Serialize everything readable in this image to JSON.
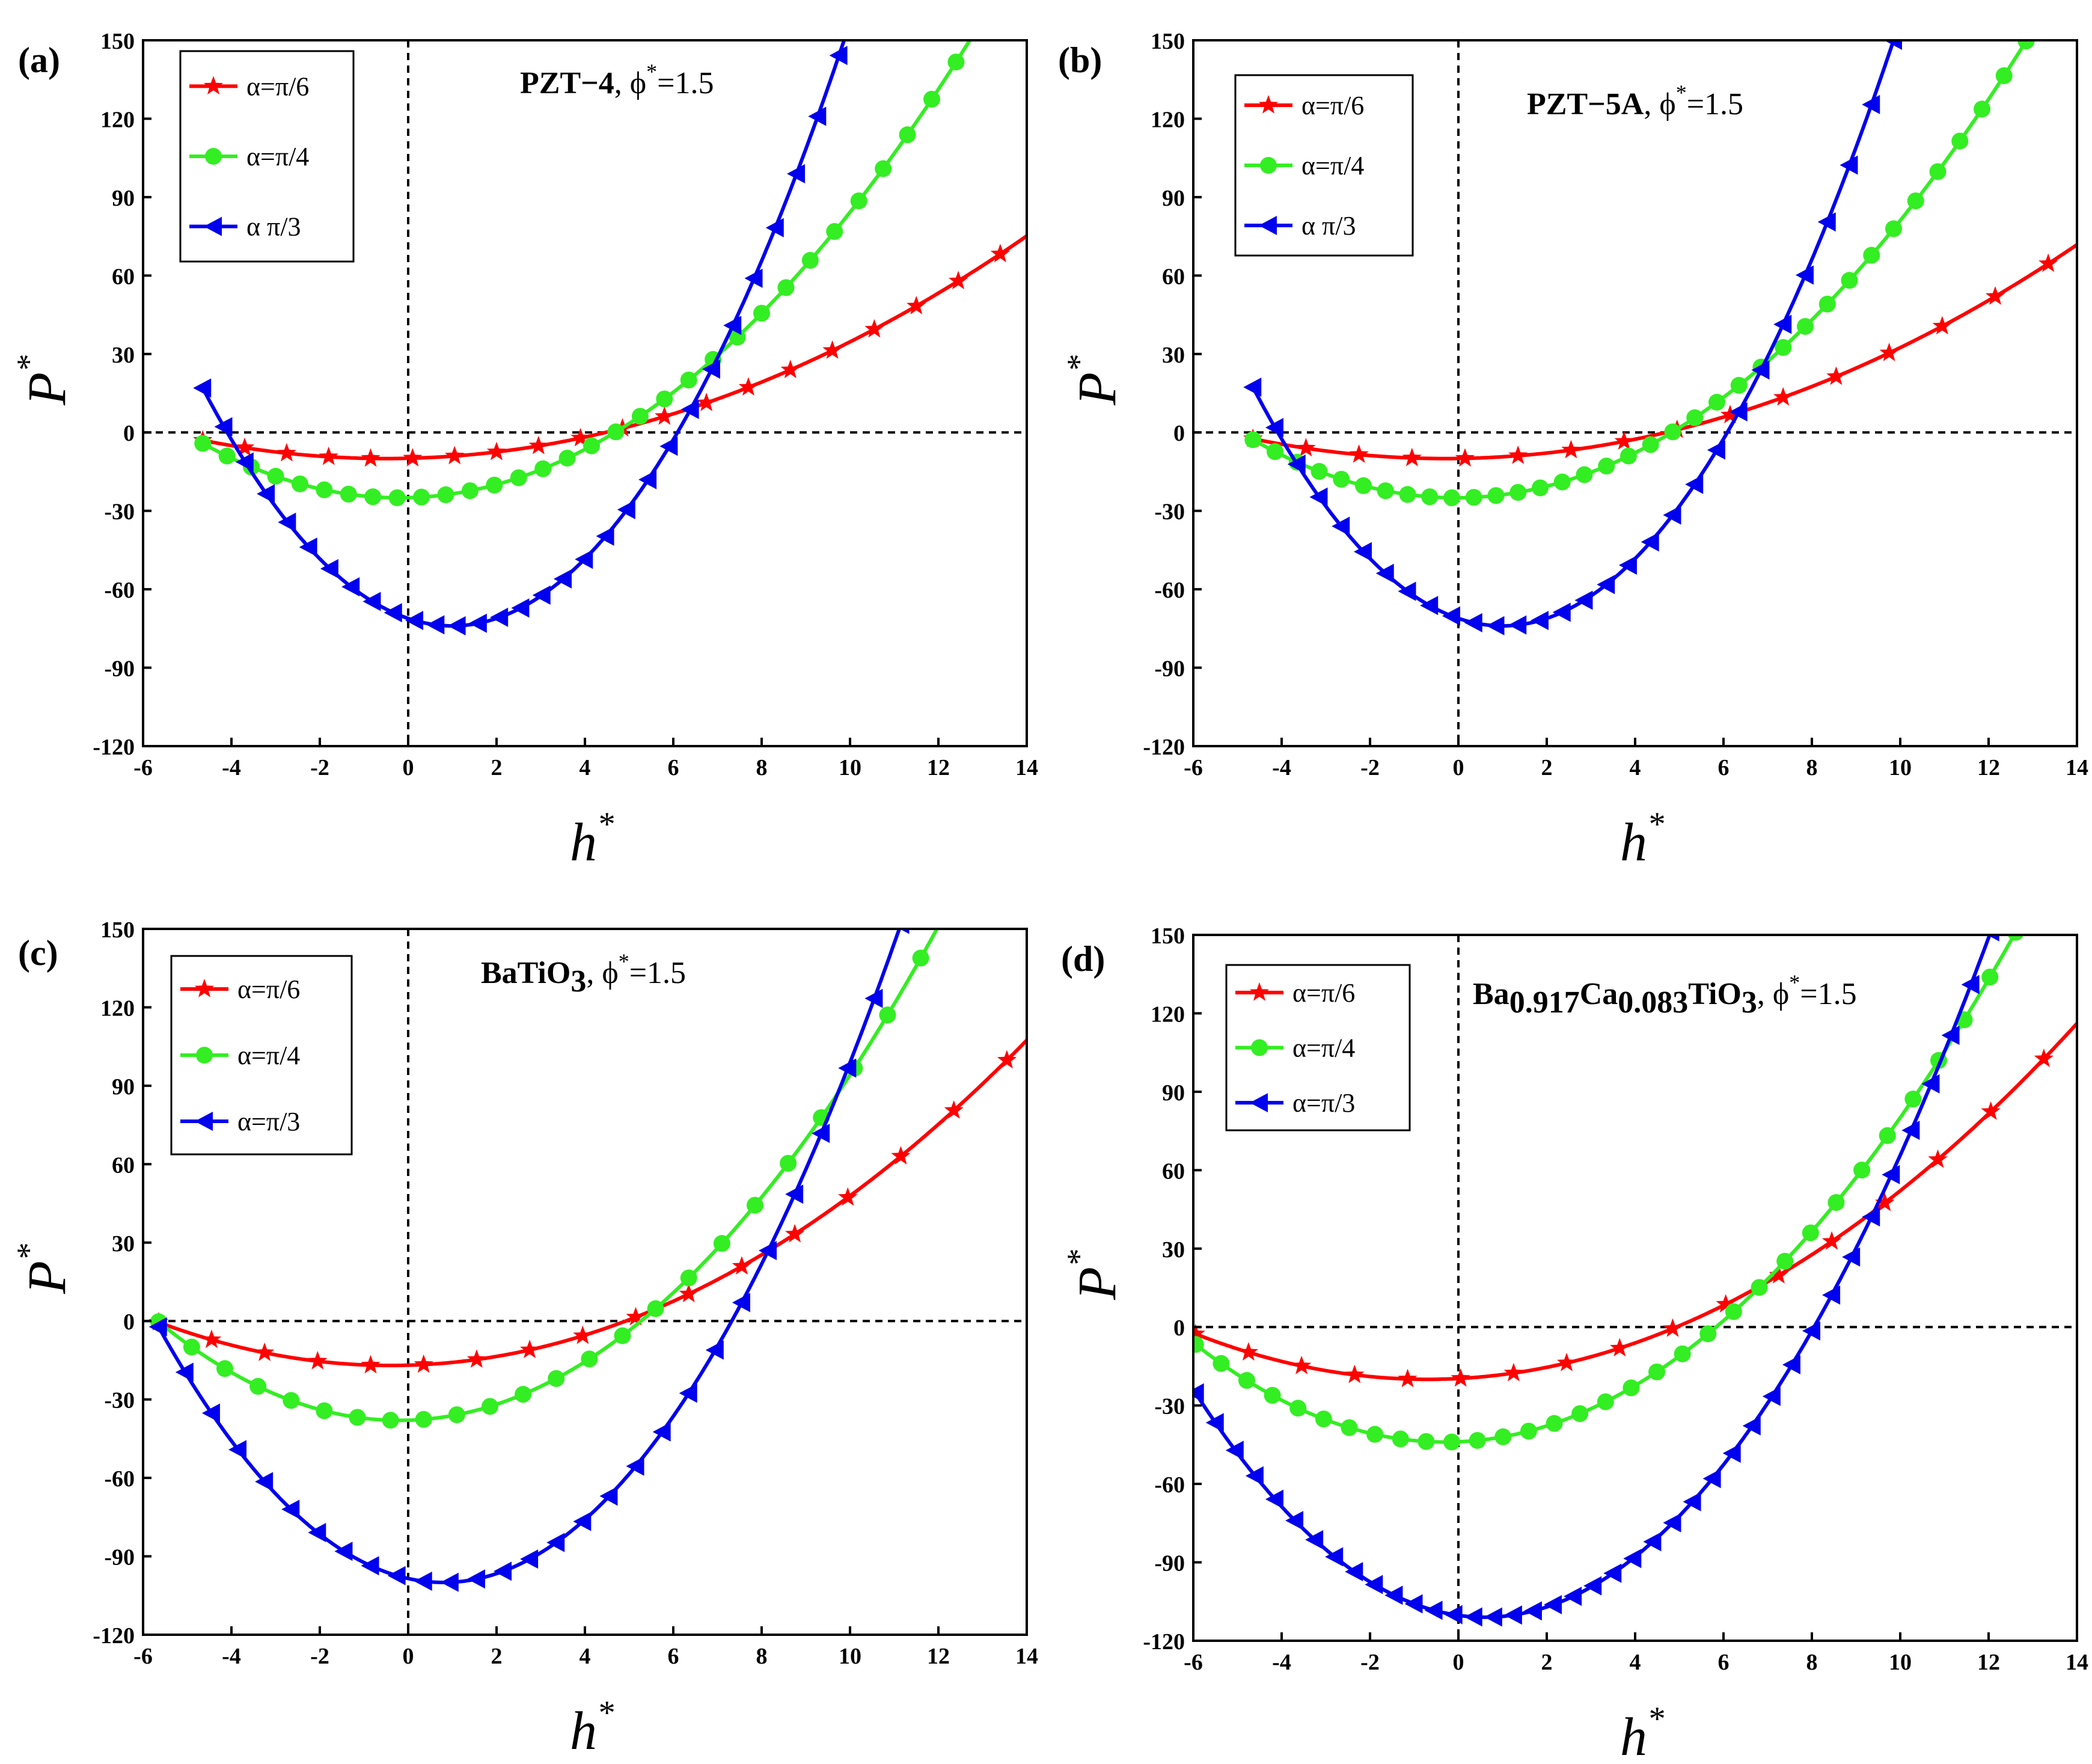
{
  "colors": {
    "red": "#ff0000",
    "green": "#33ee22",
    "blue": "#0000ee"
  },
  "chart_data": [
    {
      "type": "line",
      "panel_label": "(a)",
      "annotation": {
        "bold": "PZT−4",
        "rest": ", ϕ",
        "sup": "*",
        "tail": "=1.5",
        "sub": ""
      },
      "xlabel": "h",
      "ylabel": "P",
      "label_sup": "*",
      "xlim": [
        -6,
        14
      ],
      "ylim": [
        -120,
        150
      ],
      "xticks": [
        "-6",
        "-4",
        "-2",
        "0",
        "2",
        "4",
        "6",
        "8",
        "10",
        "12",
        "14"
      ],
      "yticks": [
        "-120",
        "-90",
        "-60",
        "-30",
        "0",
        "30",
        "60",
        "90",
        "120",
        "150"
      ],
      "series": [
        {
          "name": "α=π/6",
          "color": "#ff0000",
          "marker": "star",
          "a": 0.405,
          "x0": -0.5,
          "ymin": -10,
          "start": -4.65,
          "step": 0.95
        },
        {
          "name": "α=π/4",
          "color": "#33ee22",
          "marker": "circle",
          "a": 1.05,
          "x0": -0.2,
          "ymin": -25,
          "start": -4.65,
          "step": 0.55
        },
        {
          "name": "α π/3",
          "color": "#0000ee",
          "marker": "triangle",
          "a": 2.85,
          "x0": 1.0,
          "ymin": -74,
          "start": -4.65,
          "step": 0.48
        }
      ]
    },
    {
      "type": "line",
      "panel_label": "(b)",
      "annotation": {
        "bold": "PZT−5A",
        "rest": ",   ϕ",
        "sup": "*",
        "tail": "=1.5",
        "sub": ""
      },
      "xlabel": "h",
      "ylabel": "P",
      "label_sup": "*",
      "xlim": [
        -6,
        14
      ],
      "ylim": [
        -120,
        150
      ],
      "xticks": [
        "-6",
        "-4",
        "-2",
        "0",
        "2",
        "4",
        "6",
        "8",
        "10",
        "12",
        "14"
      ],
      "yticks": [
        "-120",
        "-90",
        "-60",
        "-30",
        "0",
        "30",
        "60",
        "90",
        "120",
        "150"
      ],
      "series": [
        {
          "name": "α=π/6",
          "color": "#ff0000",
          "marker": "star",
          "a": 0.4,
          "x0": -0.3,
          "ymin": -10,
          "start": -4.65,
          "step": 1.2
        },
        {
          "name": "α=π/4",
          "color": "#33ee22",
          "marker": "circle",
          "a": 1.05,
          "x0": -0.05,
          "ymin": -25,
          "start": -4.65,
          "step": 0.5
        },
        {
          "name": "α π/3",
          "color": "#0000ee",
          "marker": "triangle",
          "a": 2.86,
          "x0": 1.0,
          "ymin": -74,
          "start": -4.65,
          "step": 0.5
        }
      ]
    },
    {
      "type": "line",
      "panel_label": "(c)",
      "annotation": {
        "bold": "BaTiO",
        "sub": "3",
        "rest": ", ϕ",
        "sup": "*",
        "tail": "=1.5"
      },
      "xlabel": "h",
      "ylabel": "P",
      "label_sup": "*",
      "xlim": [
        -6,
        14
      ],
      "ylim": [
        -120,
        150
      ],
      "xticks": [
        "-6",
        "-4",
        "-2",
        "0",
        "2",
        "4",
        "6",
        "8",
        "10",
        "12",
        "14"
      ],
      "yticks": [
        "-120",
        "-90",
        "-60",
        "-30",
        "0",
        "30",
        "60",
        "90",
        "120",
        "150"
      ],
      "series": [
        {
          "name": "α=π/6",
          "color": "#ff0000",
          "marker": "star",
          "a": 0.6,
          "x0": -0.4,
          "ymin": -17,
          "start": -5.65,
          "step": 1.2
        },
        {
          "name": "α=π/4",
          "color": "#33ee22",
          "marker": "circle",
          "a": 1.27,
          "x0": -0.2,
          "ymin": -38,
          "start": -5.65,
          "step": 0.75
        },
        {
          "name": "α=π/3",
          "color": "#0000ee",
          "marker": "triangle",
          "a": 2.35,
          "x0": 0.8,
          "ymin": -100,
          "start": -5.65,
          "step": 0.6
        }
      ]
    },
    {
      "type": "line",
      "panel_label": "(d)",
      "annotation": {
        "bold": "Ba",
        "sub": "0.917",
        "bold2": "Ca",
        "sub2": "0.083",
        "bold3": "TiO",
        "sub3": "3",
        "rest": ",   ϕ",
        "sup": "*",
        "tail": "=1.5"
      },
      "xlabel": "h",
      "ylabel": "P",
      "label_sup": "*",
      "xlim": [
        -6,
        14
      ],
      "ylim": [
        -120,
        150
      ],
      "xticks": [
        "-6",
        "-4",
        "-2",
        "0",
        "2",
        "4",
        "6",
        "8",
        "10",
        "12",
        "14"
      ],
      "yticks": [
        "-120",
        "-90",
        "-60",
        "-30",
        "0",
        "30",
        "60",
        "90",
        "120",
        "150"
      ],
      "series": [
        {
          "name": "α=π/6",
          "color": "#ff0000",
          "marker": "star",
          "a": 0.63,
          "x0": -0.7,
          "ymin": -20,
          "start": -5.95,
          "step": 1.2
        },
        {
          "name": "α=π/4",
          "color": "#33ee22",
          "marker": "circle",
          "a": 1.17,
          "x0": -0.3,
          "ymin": -44,
          "start": -5.95,
          "step": 0.58
        },
        {
          "name": "α=π/3",
          "color": "#0000ee",
          "marker": "triangle",
          "a": 2.0,
          "x0": 0.6,
          "ymin": -111,
          "start": -5.95,
          "step": 0.45
        }
      ]
    }
  ]
}
